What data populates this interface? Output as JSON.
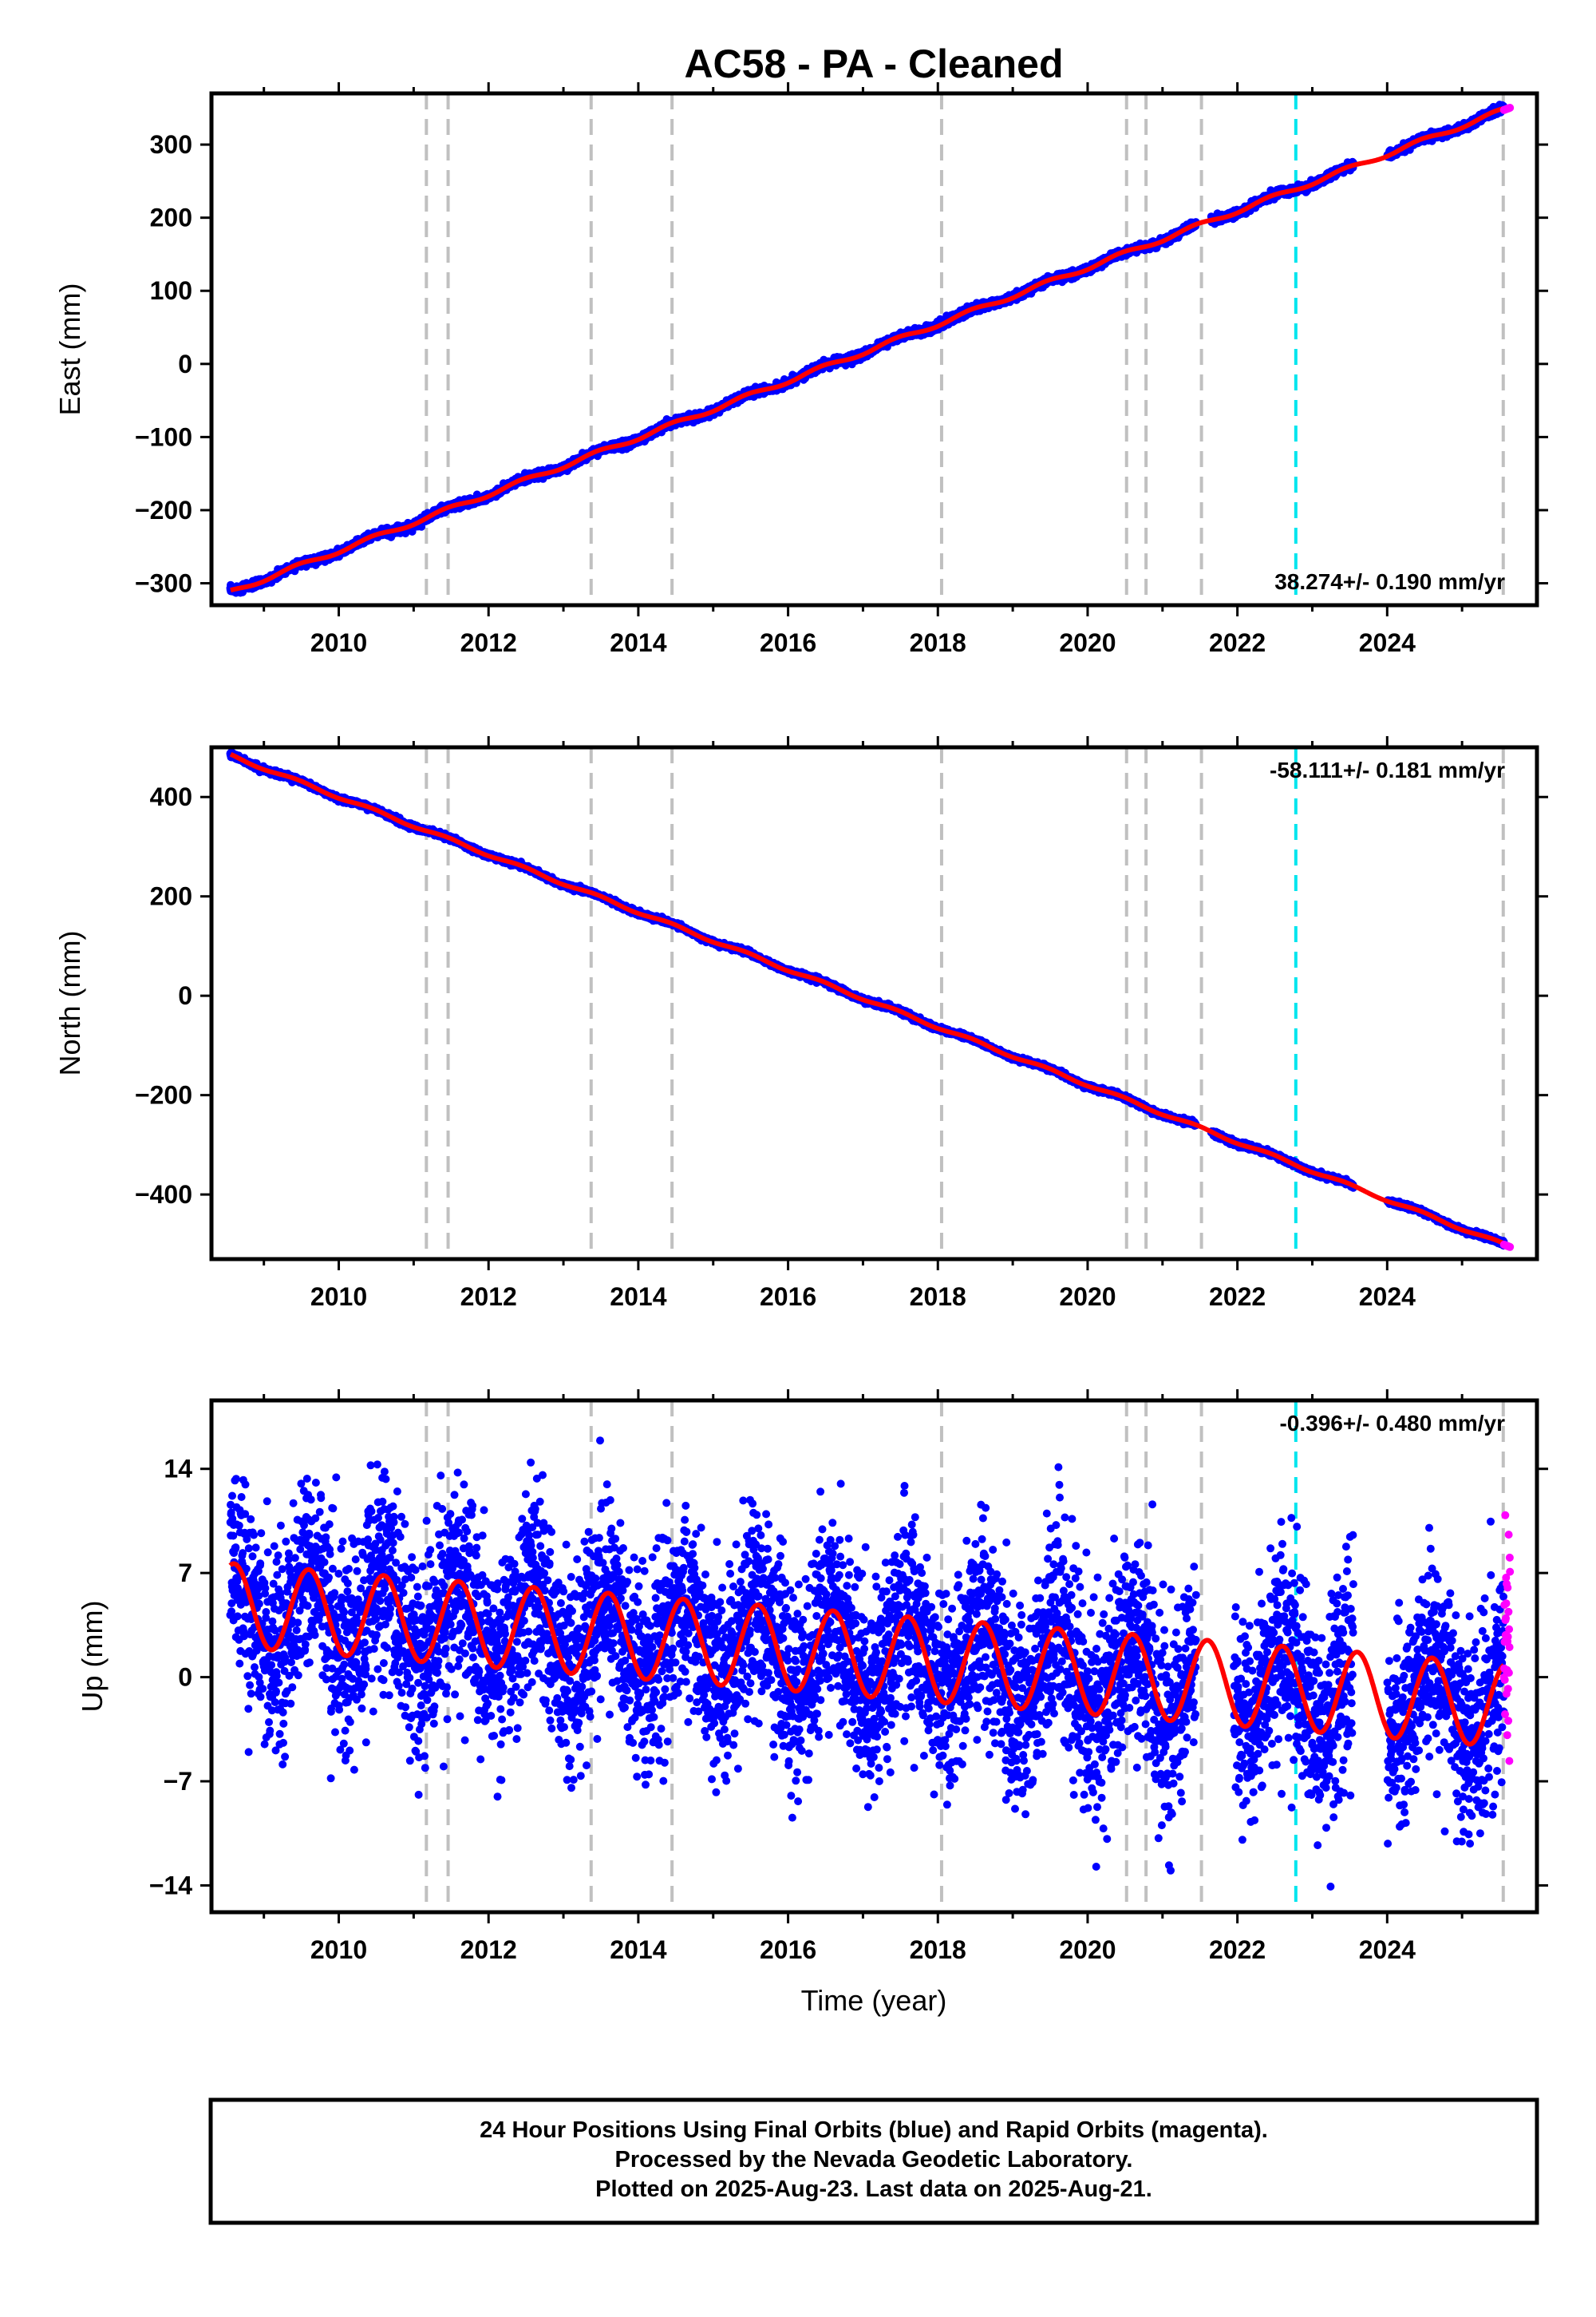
{
  "figure": {
    "title": "AC58  - PA - Cleaned",
    "xlabel": "Time (year)",
    "footer": {
      "line1": "24 Hour Positions Using Final Orbits (blue) and Rapid Orbits (magenta).",
      "line2": "Processed by the Nevada Geodetic Laboratory.",
      "line3": "Plotted on 2025-Aug-23. Last data on 2025-Aug-21."
    },
    "colors": {
      "final_orbits": "#0000ff",
      "rapid_orbits": "#ff00ff",
      "model": "#ff0000",
      "equipment_change": "#c0c0c0",
      "earthquake": "#00e5ee"
    }
  },
  "chart_data": [
    {
      "type": "scatter",
      "component": "east",
      "ylabel": "East (mm)",
      "xlim": [
        2008.3,
        2026.0
      ],
      "ylim": [
        -330,
        370
      ],
      "yticks": [
        -300,
        -200,
        -100,
        0,
        100,
        200,
        300
      ],
      "xticks": [
        2010,
        2012,
        2014,
        2016,
        2018,
        2020,
        2022,
        2024
      ],
      "rate": "38.274+/- 0.190 mm/yr",
      "rate_position": "bottom-right",
      "start": [
        2008.55,
        -312
      ],
      "end": [
        2025.63,
        350
      ],
      "gaps": [
        [
          2021.45,
          2021.65
        ],
        [
          2023.55,
          2024.0
        ]
      ]
    },
    {
      "type": "scatter",
      "component": "north",
      "ylabel": "North (mm)",
      "xlim": [
        2008.3,
        2026.0
      ],
      "ylim": [
        -530,
        500
      ],
      "yticks": [
        -400,
        -200,
        0,
        200,
        400
      ],
      "xticks": [
        2010,
        2012,
        2014,
        2016,
        2018,
        2020,
        2022,
        2024
      ],
      "rate": "-58.111+/- 0.181 mm/yr",
      "rate_position": "top-right",
      "start": [
        2008.55,
        484
      ],
      "end": [
        2025.63,
        -505
      ],
      "gaps": [
        [
          2021.45,
          2021.65
        ],
        [
          2023.55,
          2024.0
        ]
      ]
    },
    {
      "type": "scatter",
      "component": "up",
      "ylabel": "Up (mm)",
      "xlim": [
        2008.3,
        2026.0
      ],
      "ylim": [
        -15.8,
        18.6
      ],
      "yticks": [
        -14,
        -7,
        0,
        7,
        14
      ],
      "xticks": [
        2010,
        2012,
        2014,
        2016,
        2018,
        2020,
        2022,
        2024
      ],
      "rate": "-0.396+/- 0.480 mm/yr",
      "rate_position": "top-right",
      "seasonal_amplitude_mm": 2.8,
      "noise_sd_mm": 3.3,
      "gaps": [
        [
          2021.45,
          2021.95
        ],
        [
          2023.55,
          2024.0
        ]
      ]
    }
  ],
  "events": {
    "equipment_changes": [
      2011.17,
      2011.46,
      2013.37,
      2014.45,
      2018.05,
      2020.52,
      2020.78,
      2021.52,
      2025.55
    ],
    "earthquakes": [
      2022.78
    ]
  }
}
